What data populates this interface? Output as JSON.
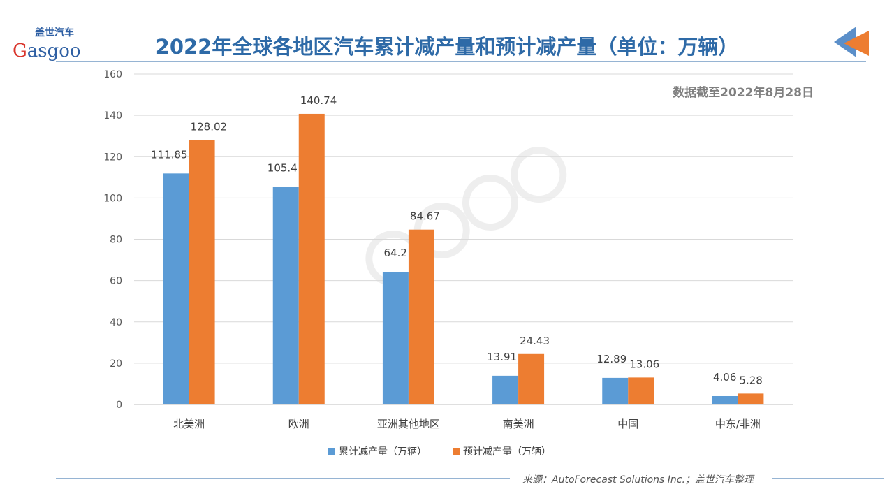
{
  "header": {
    "title": "2022年全球各地区汽车累计减产量和预计减产量（单位：万辆）",
    "logo_text": "盖世汽车 Gasgoo"
  },
  "note": "数据截至2022年8月28日",
  "footer": "来源：AutoForecast Solutions Inc.；盖世汽车整理",
  "watermark": "盖世汽车 Gasgoo",
  "colors": {
    "series1": "#5b9bd5",
    "series2": "#ed7d31",
    "title": "#2e6aa7"
  },
  "chart_data": {
    "type": "bar",
    "categories": [
      "北美洲",
      "欧洲",
      "亚洲其他地区",
      "南美洲",
      "中国",
      "中东/非洲"
    ],
    "series": [
      {
        "name": "累计减产量（万辆）",
        "values": [
          111.85,
          105.4,
          64.2,
          13.91,
          12.89,
          4.06
        ]
      },
      {
        "name": "预计减产量（万辆）",
        "values": [
          128.02,
          140.74,
          84.67,
          24.43,
          13.06,
          5.28
        ]
      }
    ],
    "ylim": [
      0,
      160
    ],
    "yticks": [
      0,
      20,
      40,
      60,
      80,
      100,
      120,
      140,
      160
    ],
    "grid": true,
    "legend": "bottom"
  }
}
